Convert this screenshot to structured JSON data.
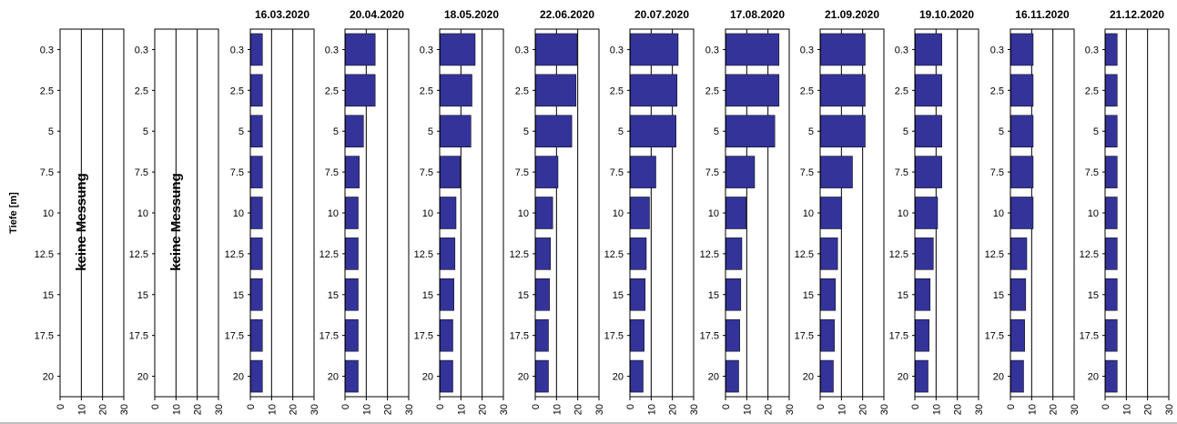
{
  "chart_data": {
    "type": "bar",
    "ylabel": "Tiefe [m]",
    "depths": [
      "0.3",
      "2.5",
      "5",
      "7.5",
      "10",
      "12.5",
      "15",
      "17.5",
      "20"
    ],
    "xlim": [
      0,
      30
    ],
    "xticks": [
      "0",
      "10",
      "20",
      "30"
    ],
    "bar_color": "#333399",
    "no_data_label": "keine Messung",
    "panels": [
      {
        "date": "",
        "no_data": true,
        "values": []
      },
      {
        "date": "",
        "no_data": true,
        "values": []
      },
      {
        "date": "16.03.2020",
        "no_data": false,
        "values": [
          5.5,
          5.5,
          5.5,
          5.5,
          5.5,
          5.5,
          5.5,
          5.5,
          5.5
        ]
      },
      {
        "date": "20.04.2020",
        "no_data": false,
        "values": [
          14,
          14,
          8.5,
          6.5,
          6,
          6,
          6,
          6,
          6
        ]
      },
      {
        "date": "18.05.2020",
        "no_data": false,
        "values": [
          16.5,
          15,
          14.5,
          9.5,
          7.5,
          7,
          6.5,
          6,
          6
        ]
      },
      {
        "date": "22.06.2020",
        "no_data": false,
        "values": [
          19.5,
          19,
          17,
          10.5,
          8,
          7,
          6.5,
          6,
          6
        ]
      },
      {
        "date": "20.07.2020",
        "no_data": false,
        "values": [
          22.5,
          22,
          21.5,
          12,
          9,
          7.5,
          7,
          6.5,
          6
        ]
      },
      {
        "date": "17.08.2020",
        "no_data": false,
        "values": [
          25,
          25,
          23,
          13.5,
          9.5,
          7.5,
          7,
          6.5,
          6
        ]
      },
      {
        "date": "21.09.2020",
        "no_data": false,
        "values": [
          21,
          21,
          21,
          15,
          10,
          8,
          7,
          6.5,
          6
        ]
      },
      {
        "date": "19.10.2020",
        "no_data": false,
        "values": [
          12.5,
          12.5,
          12.5,
          12.5,
          10.5,
          8.5,
          7,
          6.5,
          6
        ]
      },
      {
        "date": "16.11.2020",
        "no_data": false,
        "values": [
          10.5,
          10.5,
          10.5,
          10.5,
          10.5,
          7.5,
          7,
          6.5,
          6
        ]
      },
      {
        "date": "21.12.2020",
        "no_data": false,
        "values": [
          5.5,
          5.5,
          5.5,
          5.5,
          5.5,
          5.5,
          5.5,
          5.5,
          5.5
        ]
      }
    ]
  }
}
